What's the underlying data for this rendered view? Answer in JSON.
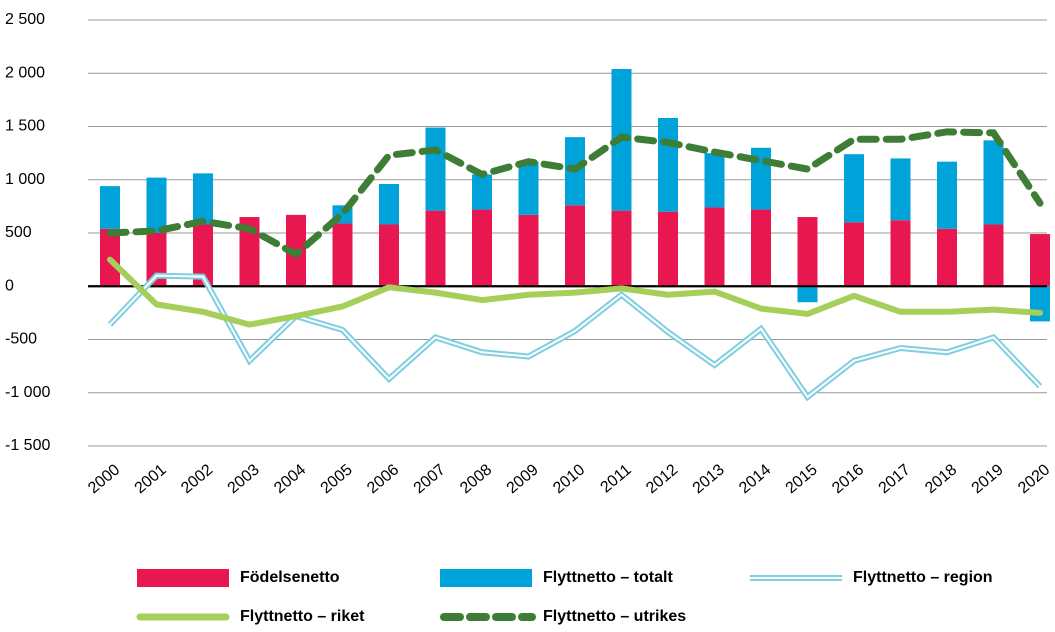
{
  "chart_data": {
    "type": "bar",
    "categories": [
      "2000",
      "2001",
      "2002",
      "2003",
      "2004",
      "2005",
      "2006",
      "2007",
      "2008",
      "2009",
      "2010",
      "2011",
      "2012",
      "2013",
      "2014",
      "2015",
      "2016",
      "2017",
      "2018",
      "2019",
      "2020"
    ],
    "series": [
      {
        "name": "Födelsenetto",
        "type": "bar",
        "color": "#e8174f",
        "values": [
          540,
          500,
          580,
          650,
          670,
          590,
          580,
          710,
          720,
          670,
          760,
          710,
          700,
          740,
          720,
          650,
          600,
          620,
          540,
          580,
          490
        ]
      },
      {
        "name": "Flyttnetto – totalt",
        "type": "bar",
        "color": "#00a3d9",
        "values": [
          400,
          520,
          480,
          0,
          0,
          170,
          380,
          780,
          330,
          500,
          640,
          1330,
          880,
          510,
          580,
          -150,
          640,
          580,
          630,
          790,
          -330
        ]
      },
      {
        "name": "Flyttnetto – region",
        "type": "double-line",
        "color": "#7ecfe0",
        "values": [
          -360,
          100,
          90,
          -700,
          -280,
          -410,
          -870,
          -480,
          -620,
          -660,
          -420,
          -80,
          -430,
          -740,
          -400,
          -1040,
          -700,
          -580,
          -620,
          -480,
          -940
        ]
      },
      {
        "name": "Flyttnetto – riket",
        "type": "line",
        "color": "#a6cf5a",
        "values": [
          250,
          -170,
          -240,
          -360,
          -280,
          -190,
          -10,
          -60,
          -130,
          -80,
          -60,
          -20,
          -80,
          -50,
          -210,
          -260,
          -90,
          -240,
          -240,
          -220,
          -250
        ]
      },
      {
        "name": "Flyttnetto – utrikes",
        "type": "dashed-line",
        "color": "#3e7d35",
        "values": [
          500,
          520,
          610,
          540,
          300,
          680,
          1230,
          1280,
          1050,
          1170,
          1100,
          1400,
          1350,
          1260,
          1180,
          1100,
          1380,
          1380,
          1450,
          1440,
          780
        ]
      }
    ],
    "ylim": [
      -1500,
      2500
    ],
    "yticks": [
      {
        "value": -1500,
        "label": "-1 500"
      },
      {
        "value": -1000,
        "label": "-1 000"
      },
      -500,
      0,
      500,
      {
        "value": 1000,
        "label": "1 000"
      },
      {
        "value": 1500,
        "label": "1 500"
      },
      {
        "value": 2000,
        "label": "2 000"
      },
      {
        "value": 2500,
        "label": "2 500"
      }
    ],
    "grid": true
  }
}
